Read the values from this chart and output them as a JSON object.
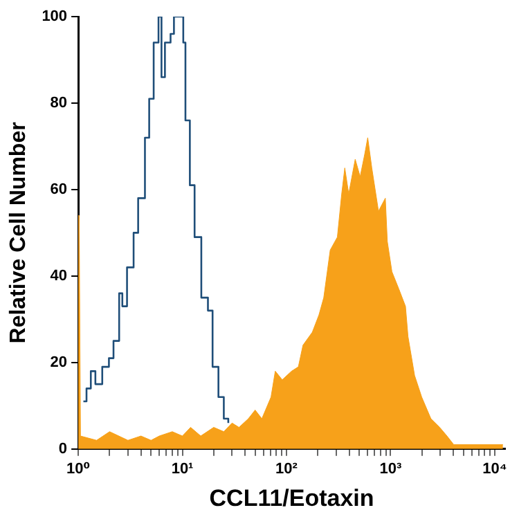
{
  "chart_data": {
    "type": "line",
    "xlabel": "CCL11/Eotaxin",
    "ylabel": "Relative Cell Number",
    "log": "x",
    "grid": false,
    "legend": false,
    "marker": "none",
    "xlim": [
      1,
      12600
    ],
    "ylim": [
      0,
      100
    ],
    "yticks": [
      0,
      20,
      40,
      60,
      80,
      100
    ],
    "xticks": [
      {
        "value": 1,
        "label": "10⁰"
      },
      {
        "value": 2,
        "label": null
      },
      {
        "value": 3,
        "label": null
      },
      {
        "value": 4,
        "label": null
      },
      {
        "value": 5,
        "label": null
      },
      {
        "value": 6,
        "label": null
      },
      {
        "value": 7,
        "label": null
      },
      {
        "value": 8,
        "label": null
      },
      {
        "value": 9,
        "label": null
      },
      {
        "value": 10,
        "label": "10¹"
      },
      {
        "value": 20,
        "label": null
      },
      {
        "value": 30,
        "label": null
      },
      {
        "value": 40,
        "label": null
      },
      {
        "value": 50,
        "label": null
      },
      {
        "value": 60,
        "label": null
      },
      {
        "value": 70,
        "label": null
      },
      {
        "value": 80,
        "label": null
      },
      {
        "value": 90,
        "label": null
      },
      {
        "value": 100,
        "label": "10²"
      },
      {
        "value": 200,
        "label": null
      },
      {
        "value": 300,
        "label": null
      },
      {
        "value": 400,
        "label": null
      },
      {
        "value": 500,
        "label": null
      },
      {
        "value": 600,
        "label": null
      },
      {
        "value": 700,
        "label": null
      },
      {
        "value": 800,
        "label": null
      },
      {
        "value": 900,
        "label": null
      },
      {
        "value": 1000,
        "label": "10³"
      },
      {
        "value": 2000,
        "label": null
      },
      {
        "value": 3000,
        "label": null
      },
      {
        "value": 4000,
        "label": null
      },
      {
        "value": 5000,
        "label": null
      },
      {
        "value": 6000,
        "label": null
      },
      {
        "value": 7000,
        "label": null
      },
      {
        "value": 8000,
        "label": null
      },
      {
        "value": 9000,
        "label": null
      },
      {
        "value": 10000,
        "label": "10⁴"
      }
    ],
    "series": [
      {
        "type": "area",
        "color": "#f7a11a",
        "x": [
          1,
          1.02,
          1.05,
          1.5,
          2,
          3,
          4,
          5,
          6,
          8,
          10,
          12,
          15,
          20,
          25,
          30,
          35,
          43,
          50,
          58,
          71,
          78,
          91,
          112,
          130,
          144,
          177,
          205,
          228,
          263,
          308,
          339,
          363,
          396,
          457,
          510,
          562,
          603,
          660,
          765,
          890,
          930,
          1030,
          1200,
          1390,
          1470,
          1700,
          1990,
          2440,
          2960,
          3480,
          4040,
          12000
        ],
        "values": [
          54,
          54,
          3,
          2,
          4,
          2,
          3,
          2,
          3,
          4,
          3,
          5,
          3,
          5,
          4,
          6,
          5,
          7,
          9,
          7,
          12,
          18,
          16,
          18,
          19,
          24,
          27,
          31,
          35,
          46,
          49,
          59,
          65,
          59,
          67,
          63,
          68,
          72,
          65,
          55,
          58,
          48,
          41,
          37,
          33,
          26,
          17,
          12,
          7,
          5,
          3,
          1,
          1
        ]
      },
      {
        "type": "step",
        "color": "#1f4e79",
        "x": [
          1.12,
          1.2,
          1.32,
          1.46,
          1.7,
          1.97,
          2.18,
          2.47,
          2.65,
          2.94,
          3.4,
          3.76,
          4.37,
          4.8,
          5.3,
          5.9,
          6.3,
          6.8,
          7.7,
          8.3,
          9.2,
          10.2,
          10.7,
          11.8,
          13.1,
          15.2,
          17.6,
          19.5,
          22.2,
          25,
          27.6
        ],
        "values": [
          11,
          14,
          18,
          15,
          19,
          21,
          25,
          36,
          33,
          42,
          50,
          58,
          72,
          81,
          94,
          100,
          86,
          94,
          96,
          100,
          100,
          94,
          76,
          61,
          49,
          35,
          32,
          19,
          12,
          7,
          6
        ]
      }
    ]
  }
}
